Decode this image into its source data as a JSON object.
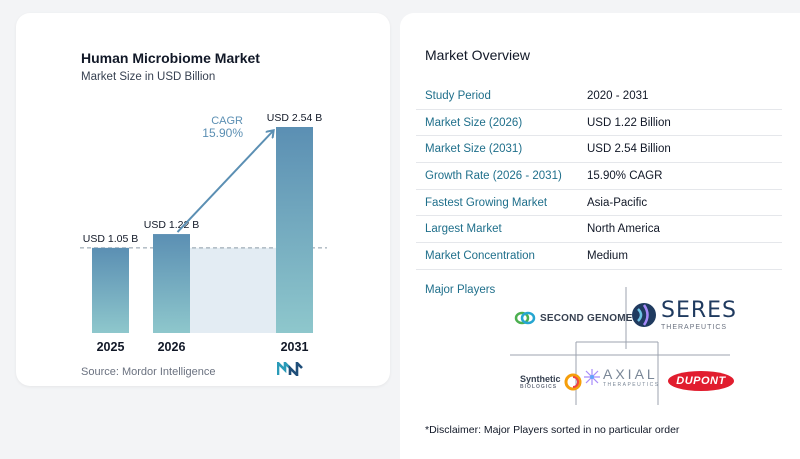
{
  "chart": {
    "title": "Human Microbiome Market",
    "subtitle": "Market Size in USD Billion",
    "source": "Source:  Mordor Intelligence",
    "cagr_label": "CAGR",
    "cagr_value": "15.90%"
  },
  "chart_data": {
    "type": "bar",
    "title": "Human Microbiome Market",
    "subtitle": "Market Size in USD Billion",
    "categories": [
      "2025",
      "2026",
      "2031"
    ],
    "values": [
      1.05,
      1.22,
      2.54
    ],
    "data_labels": [
      "USD 1.05 B",
      "USD 1.22 B",
      "USD 2.54 B"
    ],
    "annotations": [
      {
        "text": "CAGR 15.90%",
        "from": "2026",
        "to": "2031"
      }
    ],
    "ylim": [
      0,
      2.54
    ],
    "grid": false,
    "reference_line": 1.05,
    "colors": {
      "bar_top": "#5b8fb3",
      "bar_bottom": "#8ec7cc",
      "area": "#e3ecf3",
      "arrow": "#5b8fb3"
    }
  },
  "overview": {
    "title": "Market Overview",
    "rows": [
      {
        "label": "Study Period",
        "value": "2020 - 2031"
      },
      {
        "label": "Market Size (2026)",
        "value": "USD 1.22 Billion"
      },
      {
        "label": "Market Size (2031)",
        "value": "USD 2.54 Billion"
      },
      {
        "label": "Growth Rate (2026 - 2031)",
        "value": "15.90% CAGR"
      },
      {
        "label": "Fastest Growing Market",
        "value": "Asia-Pacific"
      },
      {
        "label": "Largest Market",
        "value": "North America"
      },
      {
        "label": "Market Concentration",
        "value": "Medium"
      }
    ]
  },
  "players": {
    "title": "Major Players",
    "logos": {
      "second_genome": "SECOND GENOME",
      "seres": "SERES",
      "seres_sub": "THERAPEUTICS",
      "synthetic": "Synthetic",
      "synthetic_sub": "BIOLOGICS",
      "axial": "AXIAL",
      "axial_sub": "THERAPEUTICS",
      "dupont": "DUPONT"
    }
  },
  "disclaimer": "*Disclaimer: Major Players sorted in no particular order"
}
